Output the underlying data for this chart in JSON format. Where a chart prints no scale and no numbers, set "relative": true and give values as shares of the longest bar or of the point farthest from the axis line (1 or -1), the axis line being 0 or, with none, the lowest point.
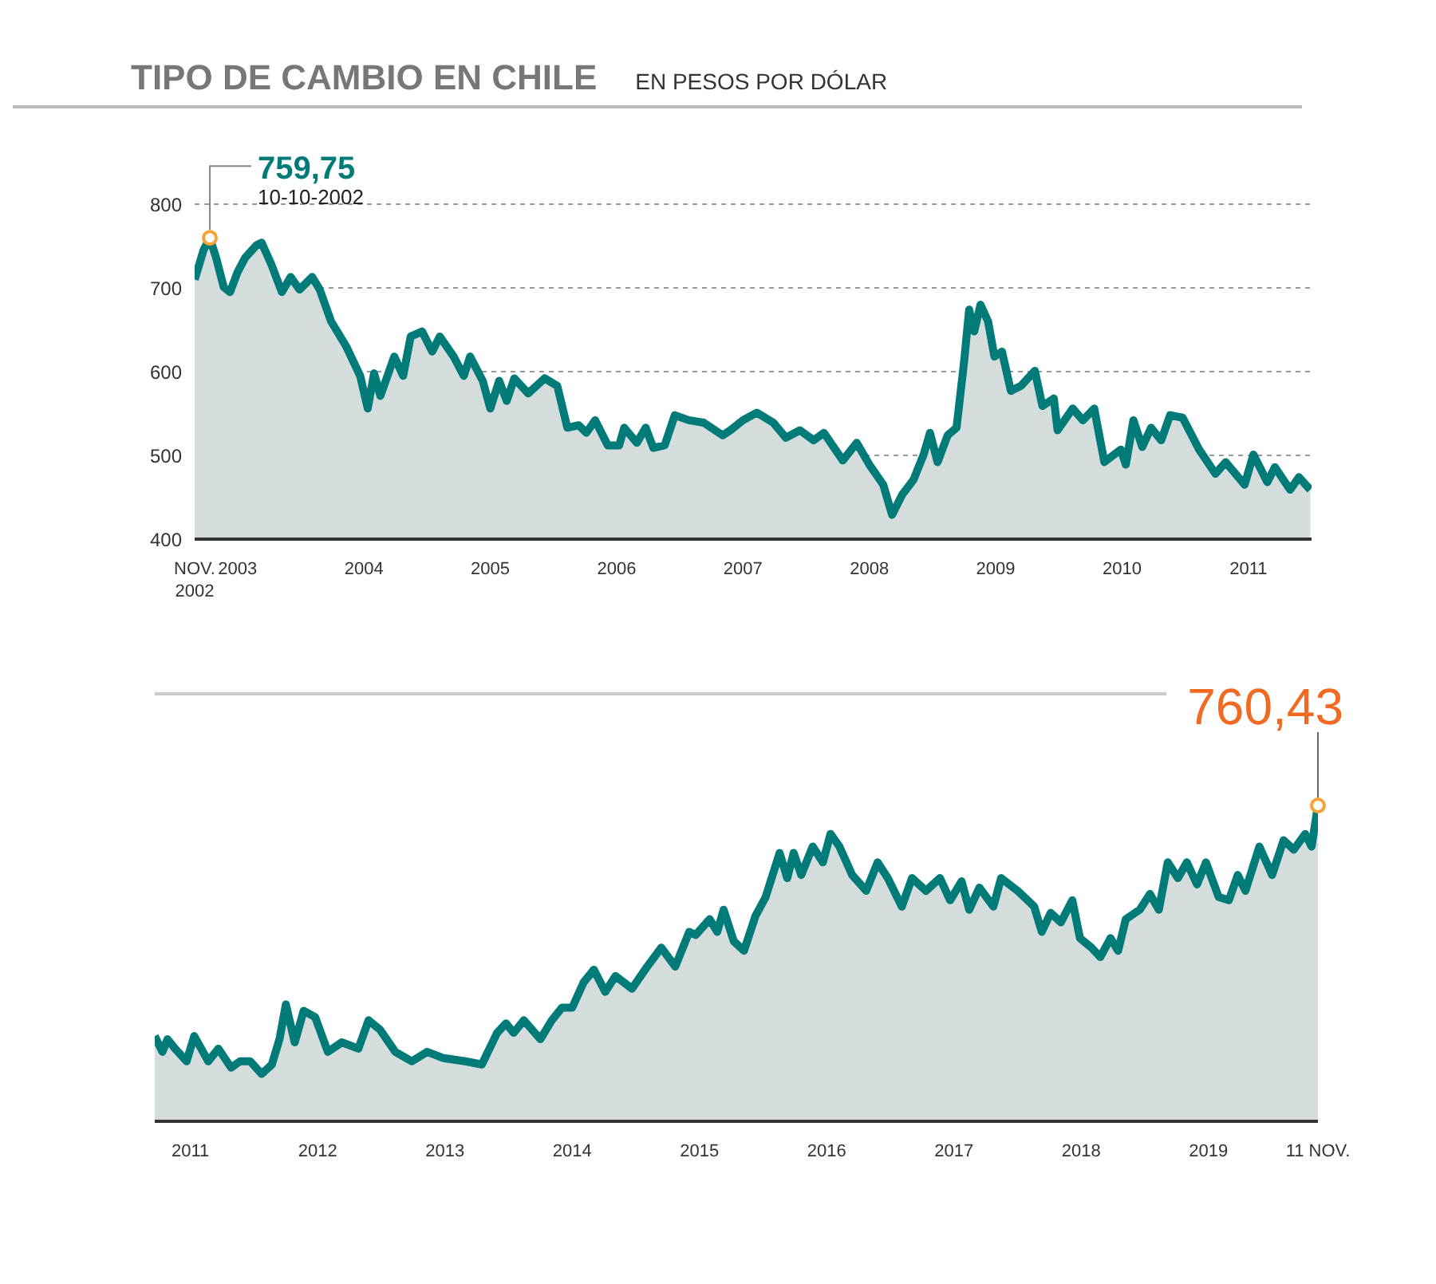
{
  "chart_data": [
    {
      "type": "area",
      "title": "TIPO DE CAMBIO EN CHILE",
      "subtitle": "EN PESOS POR DÓLAR",
      "xlim": [
        2002.66,
        2011.5
      ],
      "xticks": [
        {
          "value": 2002.66,
          "label": "NOV.\n2002"
        },
        2003,
        2004,
        2005,
        2006,
        2007,
        2008,
        2009,
        2010,
        2011
      ],
      "ylim": [
        400,
        800
      ],
      "yticks": [
        400,
        500,
        600,
        700,
        800
      ],
      "grid": "y",
      "series": [
        {
          "color": "#007b78",
          "x": [
            2002.66,
            2002.73,
            2002.78,
            2002.83,
            2002.89,
            2002.94,
            2003.0,
            2003.06,
            2003.15,
            2003.19,
            2003.27,
            2003.35,
            2003.42,
            2003.49,
            2003.59,
            2003.65,
            2003.74,
            2003.86,
            2003.97,
            2004.03,
            2004.08,
            2004.13,
            2004.24,
            2004.31,
            2004.37,
            2004.46,
            2004.54,
            2004.6,
            2004.71,
            2004.79,
            2004.84,
            2004.94,
            2005.0,
            2005.07,
            2005.13,
            2005.19,
            2005.3,
            2005.43,
            2005.53,
            2005.61,
            2005.7,
            2005.76,
            2005.83,
            2005.93,
            2006.02,
            2006.06,
            2006.16,
            2006.23,
            2006.29,
            2006.38,
            2006.46,
            2006.57,
            2006.69,
            2006.84,
            2006.9,
            2007.0,
            2007.11,
            2007.24,
            2007.34,
            2007.45,
            2007.56,
            2007.64,
            2007.79,
            2007.9,
            2008.0,
            2008.11,
            2008.18,
            2008.26,
            2008.35,
            2008.43,
            2008.48,
            2008.54,
            2008.62,
            2008.69,
            2008.75,
            2008.79,
            2008.83,
            2008.88,
            2008.94,
            2008.99,
            2009.05,
            2009.12,
            2009.2,
            2009.31,
            2009.37,
            2009.46,
            2009.49,
            2009.61,
            2009.69,
            2009.78,
            2009.86,
            2009.99,
            2010.03,
            2010.09,
            2010.16,
            2010.23,
            2010.31,
            2010.38,
            2010.48,
            2010.61,
            2010.74,
            2010.82,
            2010.97,
            2011.04,
            2011.15,
            2011.21,
            2011.33,
            2011.4,
            2011.49
          ],
          "values": [
            710,
            745,
            759.75,
            736,
            701,
            695,
            719,
            736,
            751,
            754,
            727,
            695,
            713,
            698,
            713,
            698,
            660,
            630,
            595,
            556,
            598,
            571,
            618,
            595,
            642,
            648,
            624,
            642,
            618,
            595,
            618,
            589,
            556,
            589,
            565,
            592,
            574,
            592,
            583,
            533,
            536,
            527,
            542,
            512,
            512,
            533,
            515,
            533,
            509,
            512,
            548,
            542,
            539,
            524,
            530,
            542,
            551,
            539,
            521,
            530,
            518,
            527,
            494,
            515,
            489,
            465,
            429,
            453,
            471,
            501,
            527,
            492,
            524,
            533,
            612,
            674,
            648,
            680,
            660,
            618,
            624,
            577,
            583,
            601,
            559,
            568,
            530,
            556,
            542,
            556,
            492,
            507,
            489,
            542,
            510,
            533,
            518,
            548,
            545,
            507,
            478,
            492,
            465,
            501,
            468,
            486,
            459,
            474,
            459
          ]
        }
      ],
      "annotations": [
        {
          "text": "759,75",
          "x": 2002.78,
          "y": 759.75
        },
        "10-10-2002"
      ]
    },
    {
      "type": "area",
      "tick_labels": "x",
      "xlim": [
        2010.72,
        2019.86
      ],
      "xticks": [
        2011,
        2012,
        2013,
        2014,
        2015,
        2016,
        2017,
        2018,
        2019,
        {
          "value": 2019.86,
          "label": "11 NOV."
        }
      ],
      "relative": true,
      "series": [
        {
          "color": "#007b78",
          "x": [
            2010.72,
            2010.78,
            2010.82,
            2010.88,
            2010.97,
            2011.03,
            2011.14,
            2011.22,
            2011.32,
            2011.39,
            2011.47,
            2011.56,
            2011.64,
            2011.7,
            2011.75,
            2011.82,
            2011.89,
            2011.98,
            2012.08,
            2012.19,
            2012.32,
            2012.4,
            2012.49,
            2012.61,
            2012.74,
            2012.86,
            2012.99,
            2013.16,
            2013.29,
            2013.41,
            2013.48,
            2013.54,
            2013.62,
            2013.75,
            2013.84,
            2013.92,
            2014.0,
            2014.09,
            2014.17,
            2014.26,
            2014.34,
            2014.47,
            2014.59,
            2014.7,
            2014.81,
            2014.92,
            2014.97,
            2015.08,
            2015.14,
            2015.19,
            2015.27,
            2015.35,
            2015.44,
            2015.52,
            2015.63,
            2015.69,
            2015.74,
            2015.8,
            2015.89,
            2015.97,
            2016.03,
            2016.1,
            2016.2,
            2016.31,
            2016.4,
            2016.48,
            2016.59,
            2016.67,
            2016.78,
            2016.89,
            2016.97,
            2017.06,
            2017.12,
            2017.2,
            2017.31,
            2017.37,
            2017.5,
            2017.63,
            2017.69,
            2017.76,
            2017.84,
            2017.93,
            2017.99,
            2018.08,
            2018.15,
            2018.23,
            2018.29,
            2018.35,
            2018.46,
            2018.54,
            2018.61,
            2018.68,
            2018.76,
            2018.83,
            2018.91,
            2018.98,
            2019.08,
            2019.16,
            2019.23,
            2019.29,
            2019.4,
            2019.5,
            2019.59,
            2019.67,
            2019.76,
            2019.81,
            2019.86
          ],
          "values": [
            0.27,
            0.22,
            0.26,
            0.23,
            0.19,
            0.27,
            0.19,
            0.23,
            0.17,
            0.19,
            0.19,
            0.15,
            0.18,
            0.26,
            0.37,
            0.25,
            0.35,
            0.33,
            0.22,
            0.25,
            0.23,
            0.32,
            0.29,
            0.22,
            0.19,
            0.22,
            0.2,
            0.19,
            0.18,
            0.28,
            0.31,
            0.28,
            0.32,
            0.26,
            0.32,
            0.36,
            0.36,
            0.44,
            0.48,
            0.41,
            0.46,
            0.42,
            0.49,
            0.55,
            0.49,
            0.6,
            0.59,
            0.64,
            0.6,
            0.67,
            0.57,
            0.54,
            0.65,
            0.71,
            0.85,
            0.77,
            0.85,
            0.78,
            0.87,
            0.82,
            0.91,
            0.87,
            0.78,
            0.73,
            0.82,
            0.77,
            0.68,
            0.77,
            0.73,
            0.77,
            0.7,
            0.76,
            0.67,
            0.74,
            0.68,
            0.77,
            0.73,
            0.68,
            0.6,
            0.66,
            0.63,
            0.7,
            0.58,
            0.55,
            0.52,
            0.58,
            0.54,
            0.64,
            0.67,
            0.72,
            0.67,
            0.82,
            0.77,
            0.82,
            0.75,
            0.82,
            0.71,
            0.7,
            0.78,
            0.73,
            0.87,
            0.78,
            0.89,
            0.86,
            0.91,
            0.87,
            1
          ]
        }
      ],
      "annotations": [
        {
          "text": "760,43",
          "x": 2019.86,
          "y": 1
        }
      ]
    }
  ]
}
